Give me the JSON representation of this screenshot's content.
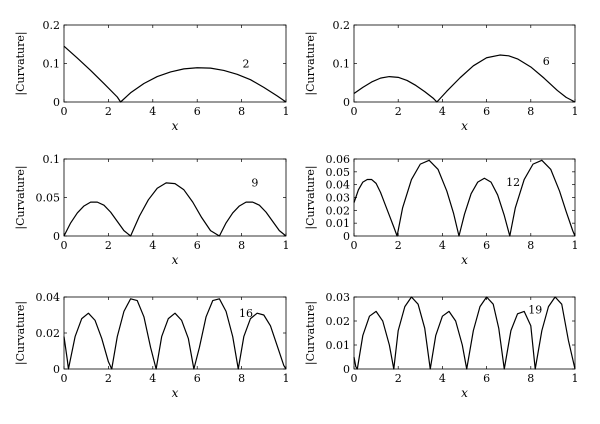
{
  "chart_data": [
    {
      "type": "line",
      "ylabel": "|Curvature|",
      "xlabel": "x",
      "xlim": [
        0,
        1
      ],
      "ylim": [
        0,
        0.2
      ],
      "xticks": [
        0,
        0.2,
        0.4,
        0.6,
        0.8,
        1
      ],
      "xtick_labels": [
        "0",
        "2",
        "4",
        "6",
        "8",
        "1"
      ],
      "yticks": [
        0,
        0.1,
        0.2
      ],
      "ytick_labels": [
        "0",
        "0.1",
        "0.2"
      ],
      "grid": false,
      "series": [
        {
          "name": "2",
          "x": [
            0,
            0.06,
            0.12,
            0.18,
            0.24,
            0.255,
            0.3,
            0.36,
            0.42,
            0.48,
            0.54,
            0.6,
            0.66,
            0.72,
            0.78,
            0.84,
            0.9,
            0.96,
            1
          ],
          "y": [
            0.145,
            0.114,
            0.082,
            0.048,
            0.013,
            0,
            0.024,
            0.048,
            0.066,
            0.078,
            0.086,
            0.089,
            0.088,
            0.082,
            0.072,
            0.058,
            0.038,
            0.016,
            0
          ]
        }
      ]
    },
    {
      "type": "line",
      "ylabel": "|Curvature|",
      "xlabel": "x",
      "xlim": [
        0,
        1
      ],
      "ylim": [
        0,
        0.2
      ],
      "xticks": [
        0,
        0.2,
        0.4,
        0.6,
        0.8,
        1
      ],
      "xtick_labels": [
        "0",
        "2",
        "4",
        "6",
        "8",
        "1"
      ],
      "yticks": [
        0,
        0.1,
        0.2
      ],
      "ytick_labels": [
        "0",
        "0.1",
        "0.2"
      ],
      "grid": false,
      "series": [
        {
          "name": "6",
          "x": [
            0,
            0.04,
            0.08,
            0.12,
            0.16,
            0.2,
            0.24,
            0.28,
            0.32,
            0.36,
            0.375,
            0.42,
            0.48,
            0.54,
            0.6,
            0.66,
            0.7,
            0.74,
            0.8,
            0.86,
            0.92,
            0.96,
            1
          ],
          "y": [
            0.022,
            0.038,
            0.052,
            0.062,
            0.066,
            0.064,
            0.056,
            0.043,
            0.027,
            0.009,
            0,
            0.028,
            0.063,
            0.094,
            0.115,
            0.122,
            0.12,
            0.112,
            0.091,
            0.062,
            0.03,
            0.012,
            0
          ]
        }
      ]
    },
    {
      "type": "line",
      "ylabel": "|Curvature|",
      "xlabel": "x",
      "xlim": [
        0,
        1
      ],
      "ylim": [
        0,
        0.1
      ],
      "xticks": [
        0,
        0.2,
        0.4,
        0.6,
        0.8,
        1
      ],
      "xtick_labels": [
        "0",
        "2",
        "4",
        "6",
        "8",
        "1"
      ],
      "yticks": [
        0,
        0.05,
        0.1
      ],
      "ytick_labels": [
        "0",
        "0.05",
        "0.1"
      ],
      "grid": false,
      "series": [
        {
          "name": "9",
          "x": [
            0,
            0.03,
            0.06,
            0.09,
            0.12,
            0.15,
            0.18,
            0.21,
            0.24,
            0.27,
            0.3,
            0.34,
            0.38,
            0.42,
            0.46,
            0.5,
            0.54,
            0.58,
            0.62,
            0.66,
            0.7,
            0.73,
            0.76,
            0.79,
            0.82,
            0.85,
            0.88,
            0.91,
            0.94,
            0.97,
            1
          ],
          "y": [
            0,
            0.017,
            0.03,
            0.039,
            0.044,
            0.044,
            0.04,
            0.031,
            0.019,
            0.007,
            0,
            0.026,
            0.047,
            0.062,
            0.069,
            0.068,
            0.06,
            0.044,
            0.024,
            0.007,
            0,
            0.017,
            0.03,
            0.039,
            0.044,
            0.044,
            0.04,
            0.031,
            0.019,
            0.007,
            0
          ]
        }
      ]
    },
    {
      "type": "line",
      "ylabel": "|Curvature|",
      "xlabel": "x",
      "xlim": [
        0,
        1
      ],
      "ylim": [
        0,
        0.06
      ],
      "xticks": [
        0,
        0.2,
        0.4,
        0.6,
        0.8,
        1
      ],
      "xtick_labels": [
        "0",
        "2",
        "4",
        "6",
        "8",
        "1"
      ],
      "yticks": [
        0,
        0.01,
        0.02,
        0.03,
        0.04,
        0.05,
        0.06
      ],
      "ytick_labels": [
        "0",
        "0.01",
        "0.02",
        "0.03",
        "0.04",
        "0.05",
        "0.06"
      ],
      "grid": false,
      "series": [
        {
          "name": "12",
          "x": [
            0,
            0.02,
            0.04,
            0.06,
            0.08,
            0.1,
            0.12,
            0.14,
            0.16,
            0.18,
            0.195,
            0.22,
            0.26,
            0.3,
            0.34,
            0.38,
            0.42,
            0.45,
            0.475,
            0.5,
            0.53,
            0.56,
            0.59,
            0.62,
            0.65,
            0.68,
            0.705,
            0.73,
            0.77,
            0.81,
            0.85,
            0.89,
            0.93,
            0.96,
            0.99,
            1
          ],
          "y": [
            0.026,
            0.036,
            0.042,
            0.044,
            0.044,
            0.041,
            0.034,
            0.025,
            0.016,
            0.007,
            0,
            0.022,
            0.044,
            0.056,
            0.059,
            0.052,
            0.035,
            0.018,
            0,
            0.017,
            0.033,
            0.042,
            0.045,
            0.042,
            0.032,
            0.016,
            0,
            0.022,
            0.044,
            0.056,
            0.059,
            0.052,
            0.035,
            0.019,
            0.004,
            0
          ]
        }
      ]
    },
    {
      "type": "line",
      "ylabel": "|Curvature|",
      "xlabel": "x",
      "xlim": [
        0,
        1
      ],
      "ylim": [
        0,
        0.04
      ],
      "xticks": [
        0,
        0.2,
        0.4,
        0.6,
        0.8,
        1
      ],
      "xtick_labels": [
        "0",
        "2",
        "4",
        "6",
        "8",
        "1"
      ],
      "yticks": [
        0,
        0.02,
        0.04
      ],
      "ytick_labels": [
        "0",
        "0.02",
        "0.04"
      ],
      "grid": false,
      "series": [
        {
          "name": "16",
          "x": [
            0,
            0.015,
            0.02,
            0.05,
            0.08,
            0.11,
            0.14,
            0.17,
            0.2,
            0.215,
            0.24,
            0.27,
            0.3,
            0.33,
            0.36,
            0.39,
            0.415,
            0.44,
            0.47,
            0.5,
            0.53,
            0.56,
            0.585,
            0.61,
            0.64,
            0.67,
            0.7,
            0.73,
            0.76,
            0.785,
            0.81,
            0.84,
            0.87,
            0.9,
            0.93,
            0.96,
            0.99,
            1
          ],
          "y": [
            0.018,
            0.005,
            0,
            0.018,
            0.028,
            0.031,
            0.027,
            0.017,
            0.004,
            0,
            0.018,
            0.032,
            0.039,
            0.038,
            0.029,
            0.012,
            0,
            0.018,
            0.028,
            0.031,
            0.027,
            0.017,
            0,
            0.012,
            0.029,
            0.038,
            0.039,
            0.032,
            0.018,
            0,
            0.018,
            0.028,
            0.031,
            0.03,
            0.024,
            0.013,
            0.002,
            0
          ]
        }
      ]
    },
    {
      "type": "line",
      "ylabel": "|Curvature|",
      "xlabel": "x",
      "xlim": [
        0,
        1
      ],
      "ylim": [
        0,
        0.03
      ],
      "xticks": [
        0,
        0.2,
        0.4,
        0.6,
        0.8,
        1
      ],
      "xtick_labels": [
        "0",
        "2",
        "4",
        "6",
        "8",
        "1"
      ],
      "yticks": [
        0,
        0.01,
        0.02,
        0.03
      ],
      "ytick_labels": [
        "0",
        "0.01",
        "0.02",
        "0.03"
      ],
      "grid": false,
      "series": [
        {
          "name": "19",
          "x": [
            0,
            0.008,
            0.015,
            0.04,
            0.07,
            0.1,
            0.13,
            0.16,
            0.18,
            0.2,
            0.23,
            0.26,
            0.29,
            0.32,
            0.345,
            0.37,
            0.4,
            0.43,
            0.46,
            0.49,
            0.51,
            0.54,
            0.57,
            0.6,
            0.63,
            0.655,
            0.68,
            0.71,
            0.74,
            0.77,
            0.8,
            0.82,
            0.85,
            0.88,
            0.91,
            0.94,
            0.97,
            1
          ],
          "y": [
            0.005,
            0.001,
            0,
            0.014,
            0.022,
            0.024,
            0.02,
            0.01,
            0,
            0.016,
            0.026,
            0.03,
            0.027,
            0.017,
            0,
            0.014,
            0.022,
            0.024,
            0.02,
            0.01,
            0,
            0.016,
            0.026,
            0.03,
            0.027,
            0.017,
            0,
            0.016,
            0.023,
            0.024,
            0.018,
            0,
            0.016,
            0.026,
            0.03,
            0.027,
            0.012,
            0
          ]
        }
      ]
    }
  ]
}
